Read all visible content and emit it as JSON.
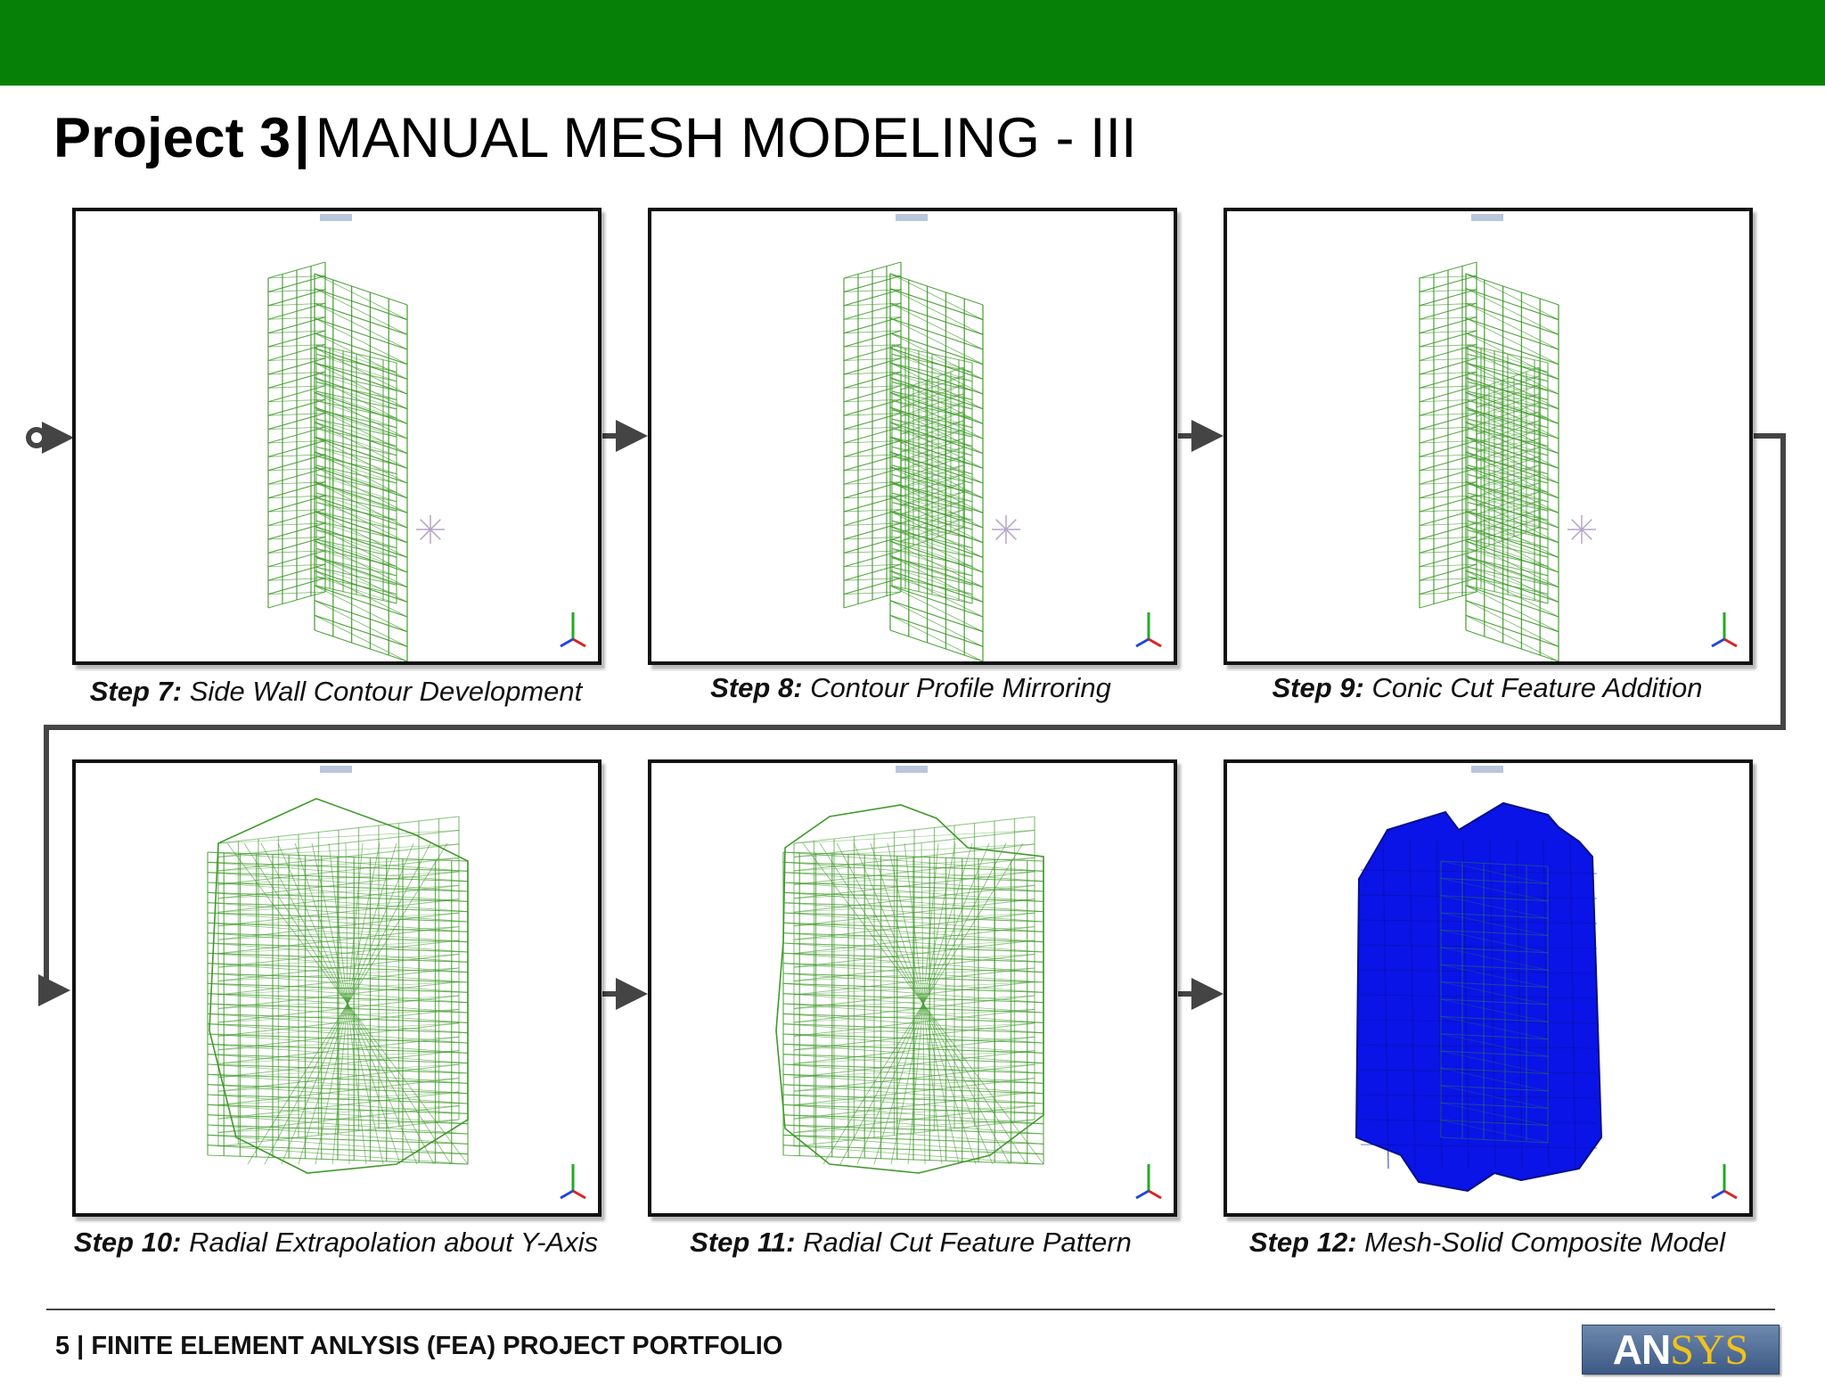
{
  "header": {
    "project_label": "Project 3",
    "separator": "|",
    "title": "MANUAL MESH MODELING - III",
    "bar_color": "#078007"
  },
  "steps": [
    {
      "label": "Step 7:",
      "text": "Side Wall Contour Development",
      "model": "half-profile-mesh"
    },
    {
      "label": "Step 8:",
      "text": "Contour Profile Mirroring",
      "model": "mirrored-profile-mesh"
    },
    {
      "label": "Step 9:",
      "text": "Conic Cut Feature Addition",
      "model": "conic-cut-mesh"
    },
    {
      "label": "Step 10:",
      "text": "Radial Extrapolation about Y-Axis",
      "model": "radial-mesh"
    },
    {
      "label": "Step 11:",
      "text": "Radial Cut Feature Pattern",
      "model": "radial-cut-mesh"
    },
    {
      "label": "Step 12:",
      "text": "Mesh-Solid Composite Model",
      "model": "solid-composite"
    }
  ],
  "colors": {
    "mesh": "#3f9a2a",
    "solid": "#0a14e6",
    "connector": "#444444"
  },
  "footer": {
    "text": "5 | FINITE ELEMENT ANLYSIS (FEA) PROJECT PORTFOLIO",
    "logo_prefix": "AN",
    "logo_suffix": "SYS"
  }
}
